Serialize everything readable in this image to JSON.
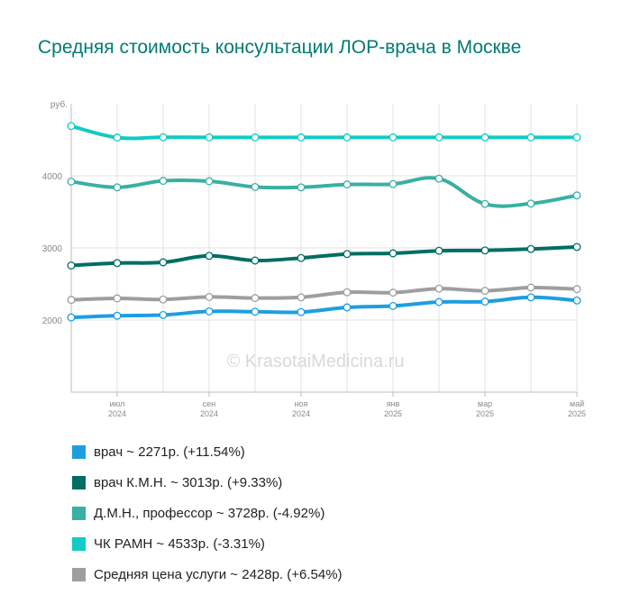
{
  "title": "Средняя стоимость консультации ЛОР-врача в Москве",
  "watermark": "© KrasotaiMedicina.ru",
  "chart_data": {
    "type": "line",
    "title": "Средняя стоимость консультации ЛОР-врача в Москве",
    "ylabel": "руб.",
    "ylim": [
      1000,
      5000
    ],
    "yticks": [
      2000,
      3000,
      4000
    ],
    "grid": true,
    "legend_position": "bottom",
    "x": [
      0,
      1,
      2,
      3,
      4,
      5,
      6,
      7,
      8,
      9,
      10,
      11
    ],
    "xticks": [
      {
        "index": 1,
        "month": "июл",
        "year": "2024"
      },
      {
        "index": 3,
        "month": "сен",
        "year": "2024"
      },
      {
        "index": 5,
        "month": "ноя",
        "year": "2024"
      },
      {
        "index": 7,
        "month": "янв",
        "year": "2025"
      },
      {
        "index": 9,
        "month": "мар",
        "year": "2025"
      },
      {
        "index": 11,
        "month": "май",
        "year": "2025"
      }
    ],
    "series": [
      {
        "name": "врач",
        "color": "#1e9ee0",
        "legend": "врач ~ 2271р. (+11.54%)",
        "values": [
          2036,
          2060,
          2070,
          2120,
          2115,
          2110,
          2175,
          2195,
          2250,
          2255,
          2315,
          2271
        ]
      },
      {
        "name": "врач К.М.Н.",
        "color": "#006e63",
        "legend": "врач К.М.Н. ~ 3013р. (+9.33%)",
        "values": [
          2756,
          2790,
          2800,
          2890,
          2825,
          2860,
          2915,
          2925,
          2960,
          2965,
          2985,
          3013
        ]
      },
      {
        "name": "Д.М.Н., профессор",
        "color": "#3aafa4",
        "legend": "Д.М.Н., профессор ~ 3728р. (-4.92%)",
        "values": [
          3920,
          3840,
          3930,
          3925,
          3845,
          3840,
          3880,
          3885,
          3960,
          3610,
          3615,
          3728
        ]
      },
      {
        "name": "ЧК РАМН",
        "color": "#11cbc4",
        "legend": "ЧК РАМН ~ 4533р. (-3.31%)",
        "values": [
          4690,
          4530,
          4535,
          4533,
          4533,
          4533,
          4533,
          4533,
          4533,
          4533,
          4533,
          4533
        ]
      },
      {
        "name": "Средняя цена услуги",
        "color": "#9e9e9e",
        "legend": "Средняя цена услуги ~ 2428р. (+6.54%)",
        "values": [
          2280,
          2300,
          2285,
          2320,
          2305,
          2315,
          2385,
          2380,
          2435,
          2405,
          2450,
          2428
        ]
      }
    ]
  }
}
